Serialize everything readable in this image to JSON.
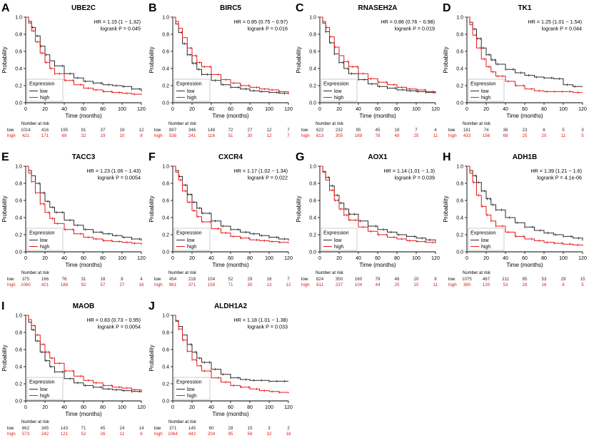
{
  "figure": {
    "labels": {
      "y_axis": "Probability",
      "x_axis": "Time (months)",
      "legend_title": "Expression",
      "legend_low": "low",
      "legend_high": "high",
      "risk_header": "Number at risk",
      "risk_row_low": "low",
      "risk_row_high": "high"
    },
    "colors": {
      "low": "#2b2b2b",
      "high": "#e41a1c",
      "axis": "#000000"
    }
  },
  "chart_data": {
    "type": "line",
    "subtype": "kaplan-meier-survival",
    "xlabel": "Time (months)",
    "ylabel": "Probability",
    "xlim": [
      0,
      120
    ],
    "ylim": [
      0.0,
      1.0
    ],
    "x_ticks": [
      0,
      20,
      40,
      60,
      80,
      100,
      120
    ],
    "x_tick_labels": [
      "0",
      "20",
      "40",
      "60",
      "80",
      "100",
      "120"
    ],
    "y_ticks": [
      1.0,
      0.8,
      0.6,
      0.4,
      0.2,
      0.0
    ],
    "y_tick_labels": [
      "1.0",
      "0.8",
      "0.6",
      "0.4",
      "0.2",
      "0.0"
    ],
    "legend_position": "bottom-left",
    "series_names": [
      "low",
      "high"
    ],
    "x": [
      0,
      3,
      6,
      10,
      15,
      20,
      25,
      30,
      40,
      50,
      60,
      70,
      80,
      90,
      100,
      110,
      120
    ],
    "panels": [
      {
        "letter": "A",
        "gene": "UBE2C",
        "hr": "HR = 1.15 (1 − 1.32)",
        "p": "logrank P = 0.045",
        "s_low": [
          1.0,
          0.95,
          0.88,
          0.78,
          0.66,
          0.56,
          0.49,
          0.43,
          0.34,
          0.29,
          0.25,
          0.23,
          0.21,
          0.2,
          0.19,
          0.16,
          0.13
        ],
        "s_high": [
          1.0,
          0.93,
          0.84,
          0.71,
          0.58,
          0.47,
          0.4,
          0.34,
          0.26,
          0.21,
          0.17,
          0.15,
          0.13,
          0.12,
          0.11,
          0.1,
          0.09
        ],
        "risk_low": [
          1014,
          416,
          195,
          91,
          37,
          18,
          12
        ],
        "risk_high": [
          421,
          171,
          69,
          32,
          19,
          10,
          8
        ]
      },
      {
        "letter": "B",
        "gene": "BIRC5",
        "hr": "HR = 0.85 (0.75 − 0.97)",
        "p": "logrank P = 0.016",
        "s_low": [
          1.0,
          0.92,
          0.82,
          0.69,
          0.56,
          0.46,
          0.39,
          0.33,
          0.26,
          0.21,
          0.18,
          0.16,
          0.14,
          0.13,
          0.12,
          0.11,
          0.1
        ],
        "s_high": [
          1.0,
          0.95,
          0.87,
          0.76,
          0.64,
          0.55,
          0.47,
          0.42,
          0.33,
          0.27,
          0.23,
          0.2,
          0.18,
          0.16,
          0.15,
          0.13,
          0.11
        ],
        "risk_low": [
          897,
          346,
          148,
          72,
          27,
          12,
          7
        ],
        "risk_high": [
          538,
          241,
          116,
          51,
          30,
          12,
          7
        ]
      },
      {
        "letter": "C",
        "gene": "RNASEH2A",
        "hr": "HR = 0.86 (0.76 − 0.98)",
        "p": "logrank P = 0.019",
        "s_low": [
          1.0,
          0.93,
          0.83,
          0.7,
          0.57,
          0.47,
          0.4,
          0.34,
          0.27,
          0.22,
          0.19,
          0.17,
          0.15,
          0.14,
          0.13,
          0.12,
          0.11
        ],
        "s_high": [
          1.0,
          0.95,
          0.88,
          0.77,
          0.65,
          0.55,
          0.48,
          0.42,
          0.34,
          0.28,
          0.24,
          0.21,
          0.18,
          0.16,
          0.15,
          0.13,
          0.12
        ],
        "risk_low": [
          622,
          232,
          95,
          45,
          18,
          7,
          4
        ],
        "risk_high": [
          813,
          355,
          169,
          78,
          48,
          25,
          11
        ]
      },
      {
        "letter": "D",
        "gene": "TK1",
        "hr": "HR = 1.25 (1.01 − 1.54)",
        "p": "logrank P = 0.044",
        "s_low": [
          1.0,
          0.94,
          0.86,
          0.75,
          0.64,
          0.56,
          0.5,
          0.45,
          0.39,
          0.35,
          0.32,
          0.3,
          0.29,
          0.28,
          0.21,
          0.19,
          0.19
        ],
        "s_high": [
          1.0,
          0.91,
          0.79,
          0.64,
          0.51,
          0.42,
          0.36,
          0.31,
          0.25,
          0.2,
          0.16,
          0.14,
          0.13,
          0.13,
          0.13,
          0.12,
          0.12
        ],
        "risk_low": [
          181,
          74,
          36,
          23,
          8,
          5,
          3
        ],
        "risk_high": [
          433,
          156,
          68,
          25,
          20,
          11,
          5
        ]
      },
      {
        "letter": "E",
        "gene": "TACC3",
        "hr": "HR = 1.23 (1.06 − 1.43)",
        "p": "logrank P = 0.0054",
        "s_low": [
          1.0,
          0.95,
          0.89,
          0.8,
          0.69,
          0.59,
          0.52,
          0.46,
          0.37,
          0.31,
          0.26,
          0.23,
          0.21,
          0.19,
          0.17,
          0.15,
          0.13
        ],
        "s_high": [
          1.0,
          0.92,
          0.82,
          0.69,
          0.56,
          0.46,
          0.39,
          0.33,
          0.26,
          0.21,
          0.17,
          0.15,
          0.13,
          0.12,
          0.11,
          0.1,
          0.08
        ],
        "risk_low": [
          375,
          166,
          76,
          31,
          18,
          8,
          4
        ],
        "risk_high": [
          1060,
          421,
          188,
          92,
          57,
          27,
          16
        ]
      },
      {
        "letter": "F",
        "gene": "CXCR4",
        "hr": "HR = 1.17 (1.02 − 1.34)",
        "p": "logrank P = 0.022",
        "s_low": [
          1.0,
          0.95,
          0.88,
          0.78,
          0.67,
          0.58,
          0.51,
          0.45,
          0.36,
          0.3,
          0.26,
          0.23,
          0.21,
          0.19,
          0.17,
          0.15,
          0.13
        ],
        "s_high": [
          1.0,
          0.93,
          0.84,
          0.71,
          0.58,
          0.48,
          0.41,
          0.35,
          0.27,
          0.22,
          0.18,
          0.16,
          0.14,
          0.13,
          0.12,
          0.11,
          0.1
        ],
        "risk_low": [
          454,
          218,
          104,
          52,
          29,
          16,
          7
        ],
        "risk_high": [
          961,
          371,
          158,
          71,
          30,
          13,
          12
        ]
      },
      {
        "letter": "G",
        "gene": "AOX1",
        "hr": "HR = 1.14 (1.01 − 1.3)",
        "p": "logrank P = 0.039",
        "s_low": [
          1.0,
          0.94,
          0.87,
          0.77,
          0.66,
          0.57,
          0.5,
          0.44,
          0.36,
          0.3,
          0.26,
          0.23,
          0.2,
          0.18,
          0.16,
          0.14,
          0.12
        ],
        "s_high": [
          1.0,
          0.93,
          0.84,
          0.72,
          0.6,
          0.5,
          0.43,
          0.37,
          0.29,
          0.24,
          0.2,
          0.17,
          0.15,
          0.13,
          0.12,
          0.11,
          0.1
        ],
        "risk_low": [
          824,
          350,
          160,
          79,
          46,
          20,
          9
        ],
        "risk_high": [
          611,
          237,
          104,
          44,
          25,
          15,
          11
        ]
      },
      {
        "letter": "H",
        "gene": "ADH1B",
        "hr": "HR = 1.39 (1.21 − 1.6)",
        "p": "logrank P = 4.1e-06",
        "s_low": [
          1.0,
          0.95,
          0.89,
          0.81,
          0.71,
          0.62,
          0.55,
          0.49,
          0.4,
          0.34,
          0.29,
          0.25,
          0.22,
          0.2,
          0.18,
          0.16,
          0.13
        ],
        "s_high": [
          1.0,
          0.92,
          0.81,
          0.66,
          0.53,
          0.43,
          0.36,
          0.3,
          0.23,
          0.18,
          0.15,
          0.13,
          0.11,
          0.1,
          0.09,
          0.08,
          0.07
        ],
        "risk_low": [
          1075,
          467,
          211,
          95,
          53,
          29,
          15
        ],
        "risk_high": [
          360,
          120,
          53,
          28,
          16,
          6,
          5
        ]
      },
      {
        "letter": "I",
        "gene": "MAOB",
        "hr": "HR = 0.83 (0.73 − 0.95)",
        "p": "logrank P = 0.0054",
        "s_low": [
          1.0,
          0.92,
          0.83,
          0.7,
          0.57,
          0.47,
          0.4,
          0.34,
          0.26,
          0.21,
          0.18,
          0.16,
          0.14,
          0.13,
          0.12,
          0.11,
          0.1
        ],
        "s_high": [
          1.0,
          0.95,
          0.88,
          0.77,
          0.66,
          0.57,
          0.5,
          0.44,
          0.35,
          0.29,
          0.24,
          0.21,
          0.18,
          0.16,
          0.15,
          0.13,
          0.11
        ],
        "risk_low": [
          862,
          345,
          143,
          71,
          45,
          24,
          14
        ],
        "risk_high": [
          573,
          242,
          121,
          52,
          26,
          11,
          6
        ]
      },
      {
        "letter": "J",
        "gene": "ALDH1A2",
        "hr": "HR = 1.18 (1.01 − 1.38)",
        "p": "logrank P = 0.033",
        "s_low": [
          1.0,
          0.94,
          0.87,
          0.77,
          0.66,
          0.57,
          0.5,
          0.45,
          0.37,
          0.31,
          0.27,
          0.25,
          0.24,
          0.24,
          0.23,
          0.23,
          0.23
        ],
        "s_high": [
          1.0,
          0.93,
          0.84,
          0.71,
          0.58,
          0.48,
          0.41,
          0.35,
          0.27,
          0.22,
          0.18,
          0.16,
          0.14,
          0.12,
          0.11,
          0.1,
          0.09
        ],
        "risk_low": [
          371,
          145,
          60,
          28,
          15,
          3,
          2
        ],
        "risk_high": [
          1064,
          442,
          204,
          95,
          56,
          32,
          18
        ]
      }
    ]
  }
}
